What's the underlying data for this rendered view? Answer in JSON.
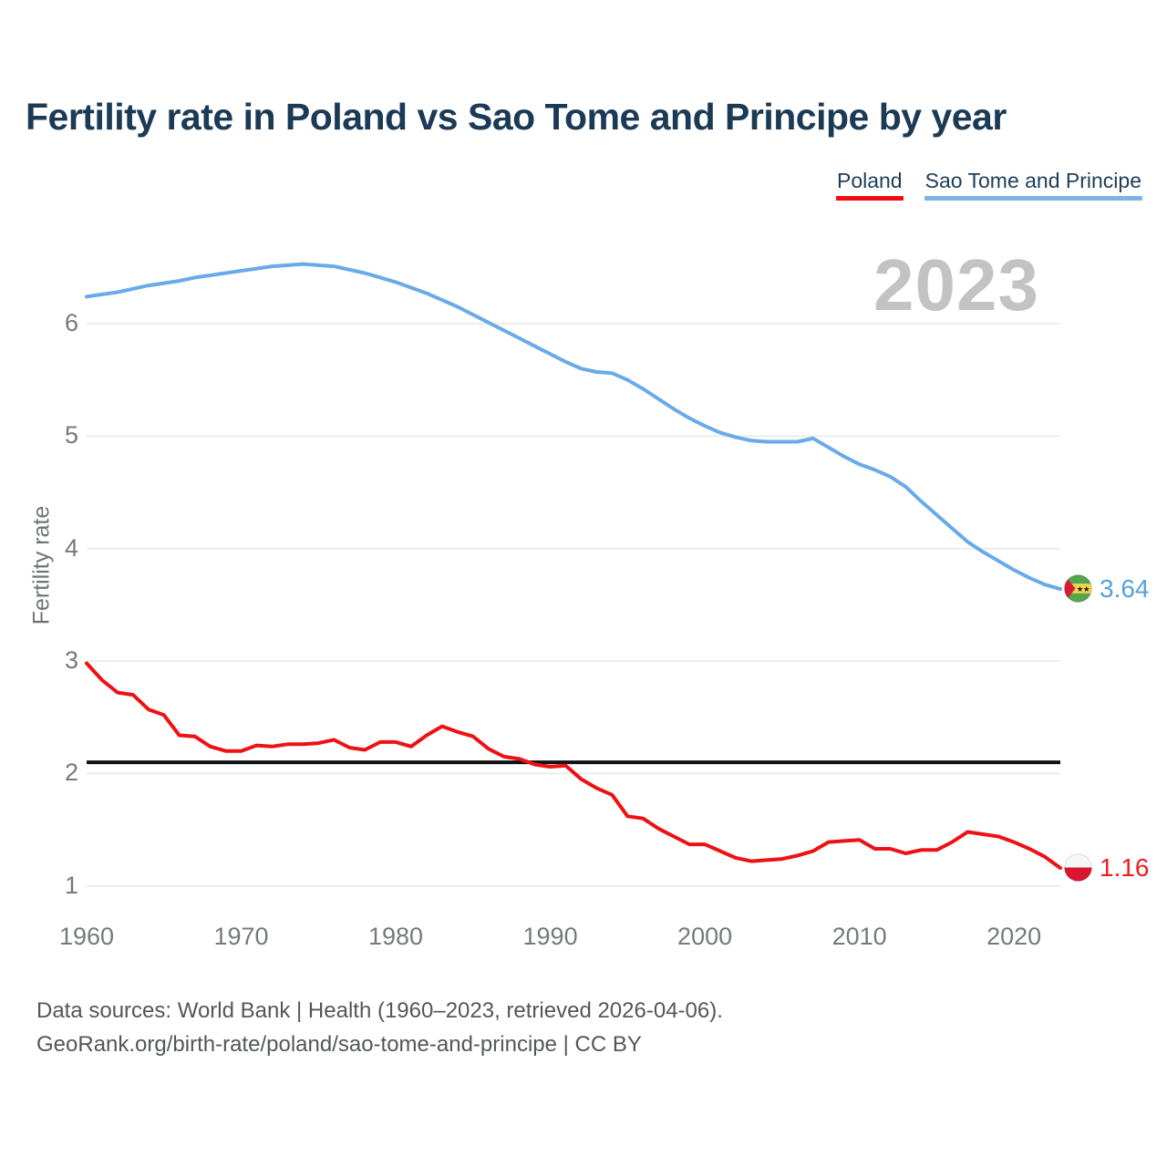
{
  "header": {
    "title": "Fertility rate in Poland vs Sao Tome and Principe by year"
  },
  "legend": {
    "items": [
      {
        "label": "Poland",
        "color": "#f40b10"
      },
      {
        "label": "Sao Tome and Principe",
        "color": "#7ab4e8"
      }
    ]
  },
  "watermark": "2023",
  "end_labels": {
    "sao_tome": {
      "value": "3.64",
      "flag": "sao-tome-and-principe-flag-icon"
    },
    "poland": {
      "value": "1.16",
      "flag": "poland-flag-icon"
    }
  },
  "footer": {
    "line1": "Data sources: World Bank | Health (1960–2023, retrieved 2026-04-06).",
    "line2": "GeoRank.org/birth-rate/poland/sao-tome-and-principe | CC BY"
  },
  "chart_data": {
    "type": "line",
    "title": "Fertility rate in Poland vs Sao Tome and Principe by year",
    "xlabel": "",
    "ylabel": "Fertility rate",
    "xlim": [
      1960,
      2023
    ],
    "ylim": [
      0.8,
      6.8
    ],
    "grid": true,
    "legend_position": "top-right",
    "xticks": [
      1960,
      1970,
      1980,
      1990,
      2000,
      2010,
      2020
    ],
    "yticks": [
      1,
      2,
      3,
      4,
      5,
      6
    ],
    "reference_line": {
      "value": 2.1,
      "color": "#111111"
    },
    "x": [
      1960,
      1961,
      1962,
      1963,
      1964,
      1965,
      1966,
      1967,
      1968,
      1969,
      1970,
      1971,
      1972,
      1973,
      1974,
      1975,
      1976,
      1977,
      1978,
      1979,
      1980,
      1981,
      1982,
      1983,
      1984,
      1985,
      1986,
      1987,
      1988,
      1989,
      1990,
      1991,
      1992,
      1993,
      1994,
      1995,
      1996,
      1997,
      1998,
      1999,
      2000,
      2001,
      2002,
      2003,
      2004,
      2005,
      2006,
      2007,
      2008,
      2009,
      2010,
      2011,
      2012,
      2013,
      2014,
      2015,
      2016,
      2017,
      2018,
      2019,
      2020,
      2021,
      2022,
      2023
    ],
    "series": [
      {
        "name": "Poland",
        "color": "#ee1114",
        "end_label": "1.16",
        "values": [
          2.98,
          2.83,
          2.72,
          2.7,
          2.57,
          2.52,
          2.34,
          2.33,
          2.24,
          2.2,
          2.2,
          2.25,
          2.24,
          2.26,
          2.26,
          2.27,
          2.3,
          2.23,
          2.21,
          2.28,
          2.28,
          2.24,
          2.34,
          2.42,
          2.37,
          2.33,
          2.22,
          2.15,
          2.13,
          2.08,
          2.06,
          2.07,
          1.95,
          1.87,
          1.81,
          1.62,
          1.6,
          1.51,
          1.44,
          1.37,
          1.37,
          1.31,
          1.25,
          1.22,
          1.23,
          1.24,
          1.27,
          1.31,
          1.39,
          1.4,
          1.41,
          1.33,
          1.33,
          1.29,
          1.32,
          1.32,
          1.39,
          1.48,
          1.46,
          1.44,
          1.39,
          1.33,
          1.26,
          1.16
        ]
      },
      {
        "name": "Sao Tome and Principe",
        "color": "#6aaae8",
        "end_label": "3.64",
        "values": [
          6.24,
          6.26,
          6.28,
          6.31,
          6.34,
          6.36,
          6.38,
          6.41,
          6.43,
          6.45,
          6.47,
          6.49,
          6.51,
          6.52,
          6.53,
          6.52,
          6.51,
          6.48,
          6.45,
          6.41,
          6.37,
          6.32,
          6.27,
          6.21,
          6.15,
          6.08,
          6.01,
          5.94,
          5.87,
          5.8,
          5.73,
          5.66,
          5.6,
          5.57,
          5.56,
          5.5,
          5.42,
          5.33,
          5.24,
          5.16,
          5.09,
          5.03,
          4.99,
          4.96,
          4.95,
          4.95,
          4.95,
          4.98,
          4.9,
          4.82,
          4.75,
          4.7,
          4.64,
          4.55,
          4.42,
          4.3,
          4.18,
          4.06,
          3.97,
          3.89,
          3.81,
          3.74,
          3.68,
          3.64
        ]
      }
    ]
  }
}
